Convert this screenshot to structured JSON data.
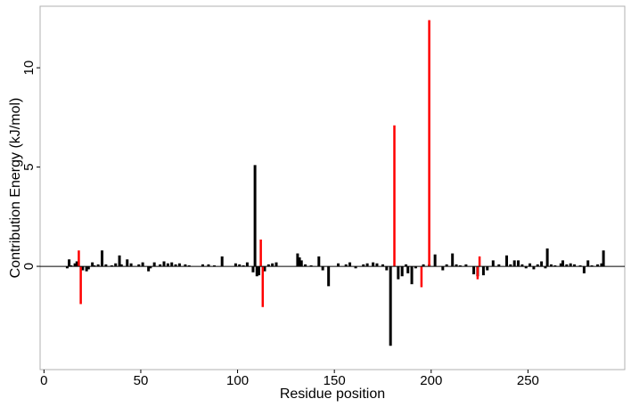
{
  "chart_data": {
    "type": "bar",
    "title": "",
    "xlabel": "Residue position",
    "ylabel": "Contribution Energy (kJ/mol)",
    "xlim": [
      -2,
      300
    ],
    "ylim": [
      -5.2,
      13.1
    ],
    "x_ticks": [
      0,
      50,
      100,
      150,
      200,
      250
    ],
    "y_ticks": [
      0,
      5,
      10
    ],
    "grid": false,
    "legend": "none",
    "colors": {
      "default": "#000000",
      "highlight": "#ff0000",
      "baseline": "#000000"
    },
    "series": [
      {
        "color": "#000000",
        "points": [
          {
            "x": 12,
            "y": -0.1
          },
          {
            "x": 13,
            "y": 0.35
          },
          {
            "x": 14,
            "y": 0.05
          },
          {
            "x": 16,
            "y": 0.15
          },
          {
            "x": 17,
            "y": 0.25
          },
          {
            "x": 20,
            "y": -0.2
          },
          {
            "x": 22,
            "y": -0.25
          },
          {
            "x": 23,
            "y": -0.15
          },
          {
            "x": 25,
            "y": 0.2
          },
          {
            "x": 26,
            "y": 0.05
          },
          {
            "x": 28,
            "y": 0.1
          },
          {
            "x": 30,
            "y": 0.8
          },
          {
            "x": 32,
            "y": 0.1
          },
          {
            "x": 35,
            "y": 0.05
          },
          {
            "x": 37,
            "y": 0.15
          },
          {
            "x": 39,
            "y": 0.55
          },
          {
            "x": 40,
            "y": 0.1
          },
          {
            "x": 43,
            "y": 0.35
          },
          {
            "x": 45,
            "y": 0.15
          },
          {
            "x": 49,
            "y": 0.1
          },
          {
            "x": 51,
            "y": 0.2
          },
          {
            "x": 54,
            "y": -0.25
          },
          {
            "x": 55,
            "y": -0.1
          },
          {
            "x": 57,
            "y": 0.2
          },
          {
            "x": 60,
            "y": 0.1
          },
          {
            "x": 62,
            "y": 0.25
          },
          {
            "x": 64,
            "y": 0.15
          },
          {
            "x": 66,
            "y": 0.2
          },
          {
            "x": 68,
            "y": 0.1
          },
          {
            "x": 70,
            "y": 0.15
          },
          {
            "x": 73,
            "y": 0.1
          },
          {
            "x": 75,
            "y": 0.05
          },
          {
            "x": 82,
            "y": 0.1
          },
          {
            "x": 85,
            "y": 0.1
          },
          {
            "x": 88,
            "y": 0.05
          },
          {
            "x": 92,
            "y": 0.5
          },
          {
            "x": 99,
            "y": 0.15
          },
          {
            "x": 101,
            "y": 0.1
          },
          {
            "x": 103,
            "y": 0.05
          },
          {
            "x": 105,
            "y": 0.2
          },
          {
            "x": 108,
            "y": -0.3
          },
          {
            "x": 109,
            "y": 5.1
          },
          {
            "x": 110,
            "y": -0.5
          },
          {
            "x": 111,
            "y": -0.45
          },
          {
            "x": 114,
            "y": -0.25
          },
          {
            "x": 116,
            "y": 0.1
          },
          {
            "x": 118,
            "y": 0.15
          },
          {
            "x": 120,
            "y": 0.2
          },
          {
            "x": 131,
            "y": 0.65
          },
          {
            "x": 132,
            "y": 0.45
          },
          {
            "x": 133,
            "y": 0.3
          },
          {
            "x": 135,
            "y": 0.1
          },
          {
            "x": 138,
            "y": 0.05
          },
          {
            "x": 142,
            "y": 0.5
          },
          {
            "x": 144,
            "y": -0.2
          },
          {
            "x": 147,
            "y": -1.0
          },
          {
            "x": 152,
            "y": 0.15
          },
          {
            "x": 156,
            "y": 0.1
          },
          {
            "x": 158,
            "y": 0.2
          },
          {
            "x": 161,
            "y": -0.1
          },
          {
            "x": 165,
            "y": 0.1
          },
          {
            "x": 167,
            "y": 0.15
          },
          {
            "x": 170,
            "y": 0.2
          },
          {
            "x": 172,
            "y": 0.15
          },
          {
            "x": 175,
            "y": 0.1
          },
          {
            "x": 177,
            "y": -0.2
          },
          {
            "x": 179,
            "y": -4.0
          },
          {
            "x": 183,
            "y": -0.65
          },
          {
            "x": 185,
            "y": -0.5
          },
          {
            "x": 187,
            "y": 0.1
          },
          {
            "x": 188,
            "y": -0.35
          },
          {
            "x": 190,
            "y": -0.9
          },
          {
            "x": 192,
            "y": -0.1
          },
          {
            "x": 196,
            "y": 0.1
          },
          {
            "x": 199,
            "y": 0.1
          },
          {
            "x": 202,
            "y": 0.6
          },
          {
            "x": 206,
            "y": -0.2
          },
          {
            "x": 208,
            "y": 0.1
          },
          {
            "x": 211,
            "y": 0.65
          },
          {
            "x": 213,
            "y": 0.1
          },
          {
            "x": 215,
            "y": 0.05
          },
          {
            "x": 218,
            "y": 0.1
          },
          {
            "x": 222,
            "y": -0.4
          },
          {
            "x": 224,
            "y": -0.5
          },
          {
            "x": 227,
            "y": -0.45
          },
          {
            "x": 229,
            "y": -0.2
          },
          {
            "x": 232,
            "y": 0.3
          },
          {
            "x": 235,
            "y": 0.1
          },
          {
            "x": 239,
            "y": 0.55
          },
          {
            "x": 241,
            "y": 0.1
          },
          {
            "x": 243,
            "y": 0.3
          },
          {
            "x": 245,
            "y": 0.3
          },
          {
            "x": 247,
            "y": 0.1
          },
          {
            "x": 249,
            "y": -0.1
          },
          {
            "x": 251,
            "y": 0.15
          },
          {
            "x": 253,
            "y": -0.15
          },
          {
            "x": 255,
            "y": 0.1
          },
          {
            "x": 257,
            "y": 0.25
          },
          {
            "x": 259,
            "y": -0.1
          },
          {
            "x": 260,
            "y": 0.9
          },
          {
            "x": 262,
            "y": 0.1
          },
          {
            "x": 264,
            "y": 0.05
          },
          {
            "x": 267,
            "y": 0.15
          },
          {
            "x": 268,
            "y": 0.3
          },
          {
            "x": 270,
            "y": 0.1
          },
          {
            "x": 272,
            "y": 0.15
          },
          {
            "x": 274,
            "y": 0.1
          },
          {
            "x": 277,
            "y": 0.05
          },
          {
            "x": 279,
            "y": -0.35
          },
          {
            "x": 281,
            "y": 0.3
          },
          {
            "x": 283,
            "y": 0.05
          },
          {
            "x": 286,
            "y": 0.1
          },
          {
            "x": 288,
            "y": 0.15
          },
          {
            "x": 289,
            "y": 0.8
          }
        ]
      },
      {
        "color": "#ff0000",
        "points": [
          {
            "x": 18,
            "y": 0.8
          },
          {
            "x": 19,
            "y": -1.9
          },
          {
            "x": 112,
            "y": 1.35
          },
          {
            "x": 113,
            "y": -2.05
          },
          {
            "x": 181,
            "y": 7.1
          },
          {
            "x": 195,
            "y": -1.05
          },
          {
            "x": 199,
            "y": 12.4
          },
          {
            "x": 224,
            "y": -0.65
          },
          {
            "x": 225,
            "y": 0.5
          }
        ]
      }
    ]
  }
}
